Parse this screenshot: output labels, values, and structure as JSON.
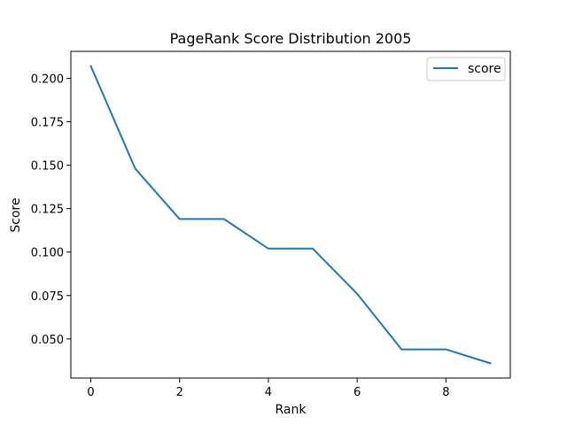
{
  "chart_data": {
    "type": "line",
    "title": "PageRank Score Distribution 2005",
    "xlabel": "Rank",
    "ylabel": "Score",
    "x": [
      0,
      1,
      2,
      3,
      4,
      5,
      6,
      7,
      8,
      9
    ],
    "series": [
      {
        "name": "score",
        "values": [
          0.207,
          0.148,
          0.119,
          0.119,
          0.102,
          0.102,
          0.076,
          0.044,
          0.044,
          0.036
        ],
        "color": "#1f77b4"
      }
    ],
    "xlim": [
      -0.45,
      9.45
    ],
    "ylim": [
      0.0275,
      0.2155
    ],
    "xticks": [
      0,
      2,
      4,
      6,
      8
    ],
    "xtick_labels": [
      "0",
      "2",
      "4",
      "6",
      "8"
    ],
    "yticks": [
      0.05,
      0.075,
      0.1,
      0.125,
      0.15,
      0.175,
      0.2
    ],
    "ytick_labels": [
      "0.050",
      "0.075",
      "0.100",
      "0.125",
      "0.150",
      "0.175",
      "0.200"
    ],
    "grid": false,
    "legend_position": "top-right"
  }
}
